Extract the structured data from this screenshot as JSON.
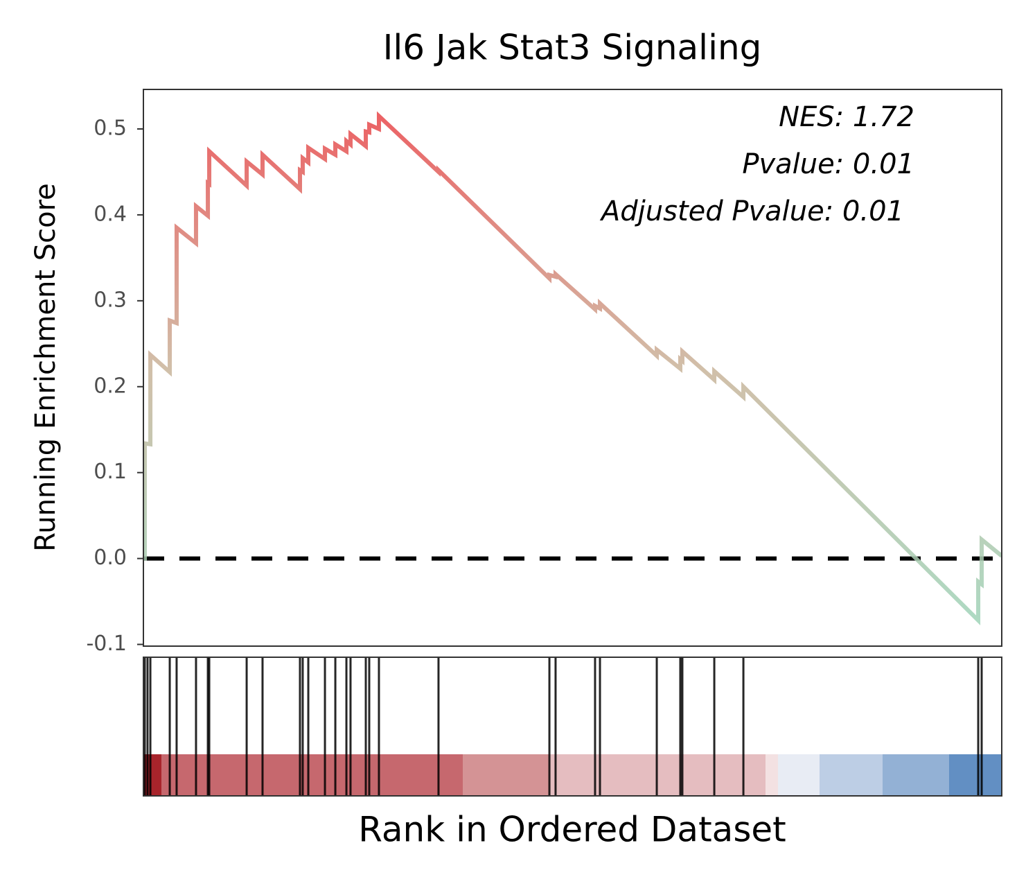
{
  "chart_data": {
    "type": "line",
    "title": "Il6 Jak Stat3 Signaling",
    "ylabel": "Running Enrichment Score",
    "xlabel": "Rank in Ordered Dataset",
    "annotations": [
      "NES: 1.72",
      "Pvalue: 0.01",
      "Adjusted Pvalue: 0.01"
    ],
    "xlim": [
      0,
      100
    ],
    "ylim": [
      -0.102,
      0.546
    ],
    "yticks": [
      -0.1,
      {
        "value": 0,
        "label": "0.0"
      },
      0.1,
      0.2,
      0.3,
      0.4,
      0.5
    ],
    "hline": 0,
    "series": [
      {
        "gradient": [
          "#9fd3b8",
          "#c9b49a",
          "#e8474a"
        ],
        "x": [
          0,
          0.16,
          0.16,
          0.81,
          0.81,
          3.07,
          3.07,
          3.87,
          3.87,
          6.13,
          6.13,
          7.51,
          7.51,
          7.67,
          7.67,
          12.03,
          12.03,
          13.88,
          13.88,
          18.24,
          18.24,
          18.56,
          18.56,
          19.21,
          19.21,
          21.15,
          21.15,
          22.36,
          22.36,
          23.65,
          23.65,
          24.13,
          24.13,
          25.91,
          25.91,
          26.31,
          26.31,
          27.44,
          27.44,
          34.38,
          34.38,
          47.3,
          47.3,
          48.02,
          48.02,
          52.62,
          52.62,
          53.19,
          53.19,
          59.81,
          59.81,
          62.55,
          62.55,
          62.79,
          62.79,
          66.51,
          66.51,
          69.9,
          69.9,
          97.26,
          97.26,
          97.66,
          97.66,
          100
        ],
        "values": [
          0,
          0,
          0.134,
          0.133,
          0.237,
          0.217,
          0.277,
          0.274,
          0.385,
          0.367,
          0.41,
          0.399,
          0.437,
          0.436,
          0.474,
          0.434,
          0.462,
          0.447,
          0.47,
          0.43,
          0.452,
          0.45,
          0.466,
          0.461,
          0.478,
          0.465,
          0.477,
          0.47,
          0.482,
          0.474,
          0.486,
          0.482,
          0.494,
          0.48,
          0.497,
          0.496,
          0.505,
          0.5,
          0.515,
          0.45,
          0.452,
          0.326,
          0.33,
          0.328,
          0.331,
          0.29,
          0.294,
          0.291,
          0.297,
          0.236,
          0.243,
          0.221,
          0.232,
          0.23,
          0.241,
          0.208,
          0.218,
          0.188,
          0.2,
          -0.072,
          -0.027,
          -0.03,
          0.022,
          0.003
        ]
      }
    ],
    "hits": [
      0.16,
      0.48,
      0.81,
      3.07,
      3.87,
      6.13,
      7.51,
      7.67,
      12.03,
      13.88,
      18.24,
      18.56,
      19.21,
      21.15,
      22.36,
      23.65,
      24.13,
      25.91,
      26.31,
      27.44,
      34.38,
      47.3,
      48.02,
      52.62,
      53.19,
      59.81,
      62.55,
      62.79,
      66.51,
      69.9,
      97.26,
      97.66
    ]
  }
}
